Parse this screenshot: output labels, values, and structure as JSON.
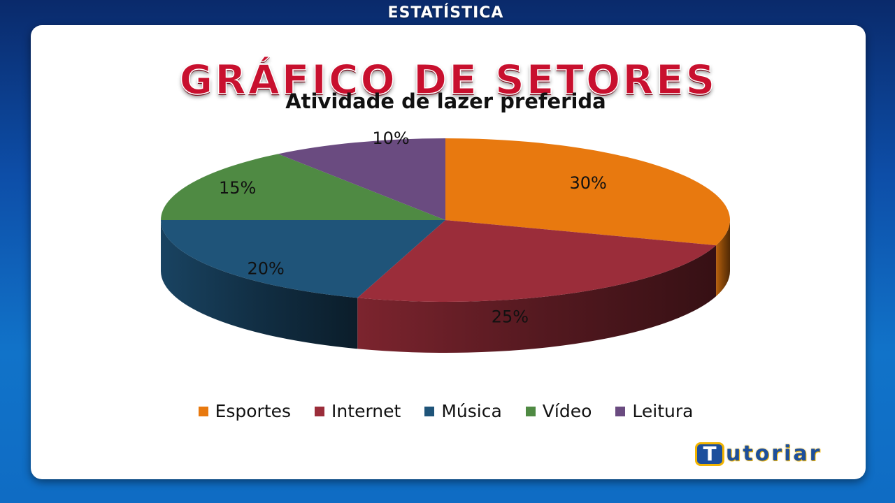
{
  "header": {
    "top_label": "ESTATÍSTICA",
    "headline": "GRÁFICO DE SETORES"
  },
  "logo": {
    "badge": "T",
    "text": "utoriar"
  },
  "colors": {
    "Esportes": "#e8790f",
    "Internet": "#9b2d3a",
    "Música": "#1f5479",
    "Vídeo": "#4f8a43",
    "Leitura": "#6a4b80"
  },
  "chart_data": {
    "type": "pie",
    "title": "Atividade de lazer preferida",
    "categories": [
      "Esportes",
      "Internet",
      "Música",
      "Vídeo",
      "Leitura"
    ],
    "values": [
      30,
      25,
      20,
      15,
      10
    ],
    "labels": [
      "30%",
      "25%",
      "20%",
      "15%",
      "10%"
    ],
    "style": "3d",
    "legend": "bottom"
  }
}
